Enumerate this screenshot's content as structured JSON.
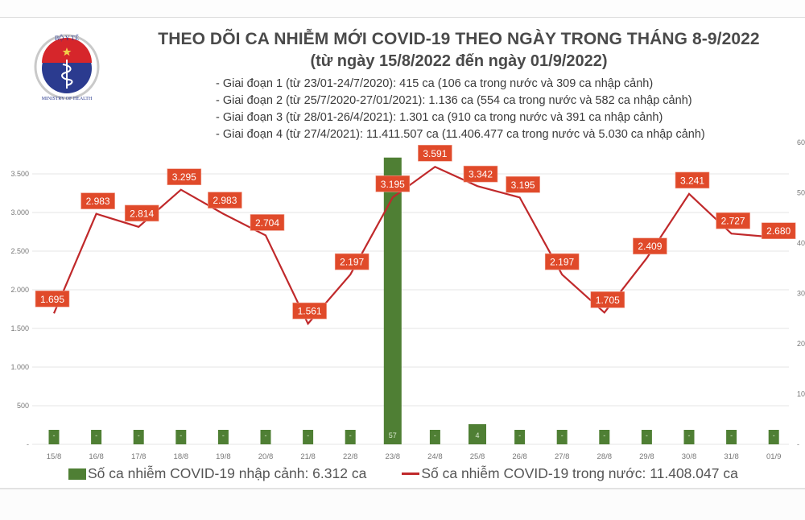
{
  "header": {
    "logo": {
      "top_text": "BỘ Y TẾ",
      "bottom_text": "MINISTRY OF HEALTH",
      "colors": {
        "red": "#d6262b",
        "blue": "#2b3b8f",
        "ring": "#c8c8c8"
      }
    },
    "title": "THEO DÕI CA NHIỄM MỚI COVID-19 THEO NGÀY TRONG THÁNG 8-9/2022",
    "subtitle": "(từ ngày 15/8/2022 đến ngày 01/9/2022)",
    "phases": [
      "- Giai đoạn 1 (từ 23/01-24/7/2020): 415 ca (106 ca trong nước và 309 ca nhập cảnh)",
      "- Giai đoạn 2 (từ 25/7/2020-27/01/2021): 1.136 ca (554 ca trong nước và 582 ca nhập cảnh)",
      "- Giai đoạn 3 (từ 28/01-26/4/2021): 1.301 ca (910 ca trong nước và 391 ca nhập cảnh)",
      "- Giai đoạn 4 (từ 27/4/2021): 11.411.507 ca (11.406.477 ca trong nước và 5.030 ca nhập cảnh)"
    ]
  },
  "legend": {
    "bar_label": "Số ca nhiễm COVID-19 nhập cảnh: 6.312 ca",
    "line_label": "Số ca nhiễm COVID-19 trong nước: 11.408.047 ca"
  },
  "colors": {
    "bar": "#4f7f34",
    "line": "#c0292b",
    "label_bg": "#e04a2a",
    "label_text": "#ffffff",
    "grid": "#e6e6e6",
    "axis_text": "#777777"
  },
  "chart_data": {
    "type": "bar+line",
    "title": "THEO DÕI CA NHIỄM MỚI COVID-19 THEO NGÀY TRONG THÁNG 8-9/2022",
    "subtitle": "(từ ngày 15/8/2022 đến ngày 01/9/2022)",
    "categories": [
      "15/8",
      "16/8",
      "17/8",
      "18/8",
      "19/8",
      "20/8",
      "21/8",
      "22/8",
      "23/8",
      "24/8",
      "25/8",
      "26/8",
      "27/8",
      "28/8",
      "29/8",
      "30/8",
      "31/8",
      "01/9"
    ],
    "series": [
      {
        "name": "Số ca nhiễm COVID-19 nhập cảnh: 6.312 ca",
        "type": "bar",
        "axis": "right",
        "values": [
          0,
          0,
          0,
          0,
          0,
          0,
          0,
          0,
          57,
          0,
          4,
          0,
          0,
          0,
          0,
          0,
          0,
          0
        ],
        "labels": [
          "-",
          "-",
          "-",
          "-",
          "-",
          "-",
          "-",
          "-",
          "57",
          "-",
          "4",
          "-",
          "-",
          "-",
          "-",
          "-",
          "-",
          "-"
        ]
      },
      {
        "name": "Số ca nhiễm COVID-19 trong nước: 11.408.047 ca",
        "type": "line",
        "axis": "left",
        "values": [
          1695,
          2983,
          2814,
          3295,
          2983,
          2704,
          1561,
          2197,
          3195,
          3591,
          3342,
          3195,
          2197,
          1705,
          2409,
          3241,
          2727,
          2680
        ],
        "labels": [
          "1.695",
          "2.983",
          "2.814",
          "3.295",
          "2.983",
          "2.704",
          "1.561",
          "2.197",
          "3.195",
          "3.591",
          "3.342",
          "3.195",
          "2.197",
          "1.705",
          "2.409",
          "3.241",
          "2.727",
          "2.680"
        ]
      }
    ],
    "left_axis": {
      "ticks": [
        0,
        500,
        1000,
        1500,
        2000,
        2500,
        3000,
        3500
      ],
      "tick_labels": [
        "-",
        "500",
        "1.000",
        "1.500",
        "2.000",
        "2.500",
        "3.000",
        "3.500"
      ],
      "range": [
        0,
        3900
      ]
    },
    "right_axis": {
      "ticks": [
        0,
        10,
        20,
        30,
        40,
        50,
        60
      ],
      "tick_labels": [
        "-",
        "10",
        "20",
        "30",
        "40",
        "50",
        "60"
      ],
      "range": [
        0,
        60
      ]
    },
    "xlabel": "",
    "ylabel": "",
    "grid": true,
    "legend_position": "bottom"
  }
}
